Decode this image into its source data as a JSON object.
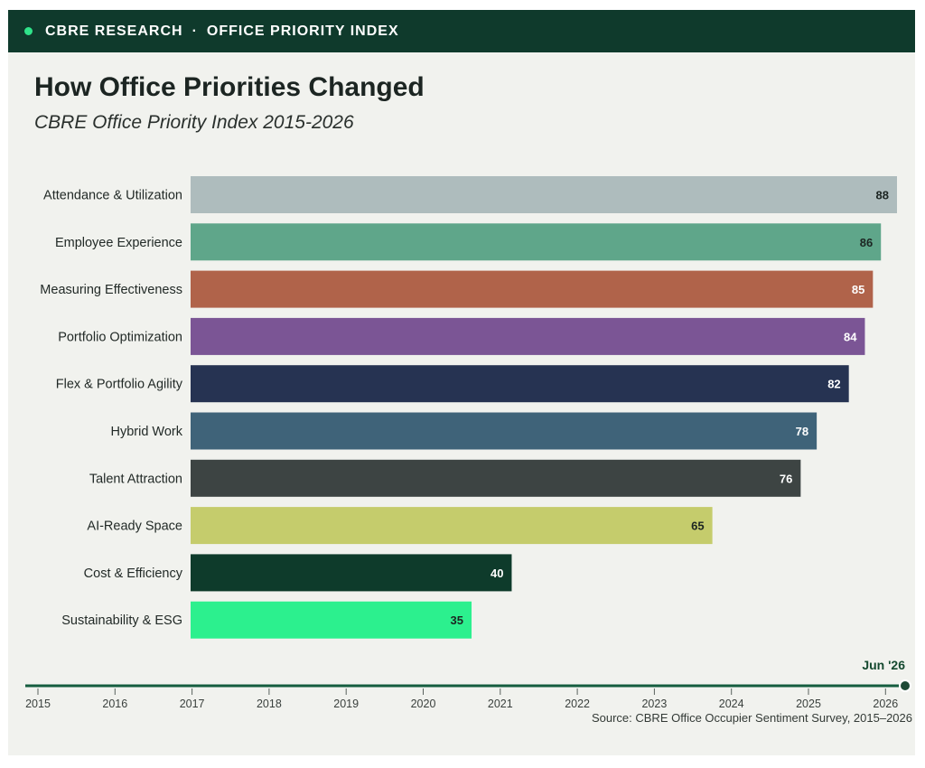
{
  "header": {
    "brand": "CBRE RESEARCH",
    "separator": "·",
    "section": "OFFICE PRIORITY INDEX"
  },
  "colors": {
    "header_bg": "#0f3a2c",
    "accent": "#2fe38a",
    "timeline": "#145c3e"
  },
  "timeline": {
    "current_label": "Jun '26",
    "years": [
      "2015",
      "2016",
      "2017",
      "2018",
      "2019",
      "2020",
      "2021",
      "2022",
      "2023",
      "2024",
      "2025",
      "2026"
    ],
    "progress": 1.0
  },
  "source": "Source: CBRE Office Occupier Sentiment Survey, 2015–2026",
  "chart_data": {
    "type": "bar",
    "orientation": "horizontal",
    "title": "How Office Priorities Changed",
    "subtitle": "CBRE Office Priority Index 2015-2026",
    "xlim": [
      0,
      88
    ],
    "categories": [
      "Attendance & Utilization",
      "Employee Experience",
      "Measuring Effectiveness",
      "Portfolio Optimization",
      "Flex & Portfolio Agility",
      "Hybrid Work",
      "Talent Attraction",
      "AI-Ready Space",
      "Cost & Efficiency",
      "Sustainability & ESG"
    ],
    "values": [
      88,
      86,
      85,
      84,
      82,
      78,
      76,
      65,
      40,
      35
    ],
    "bar_colors": [
      "#aebcbd",
      "#5fa68a",
      "#b0634a",
      "#7b5595",
      "#263352",
      "#3f6379",
      "#3d4443",
      "#c5cc6c",
      "#0e3b2b",
      "#2cf08e"
    ],
    "label_colors": [
      "#1c2522",
      "#1c2522",
      "#ffffff",
      "#ffffff",
      "#ffffff",
      "#ffffff",
      "#ffffff",
      "#1c2522",
      "#ffffff",
      "#1c2522"
    ]
  }
}
